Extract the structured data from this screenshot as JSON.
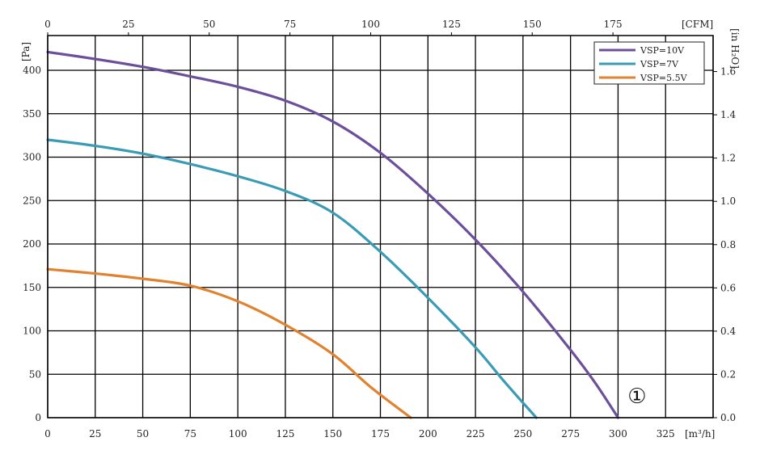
{
  "chart_data": {
    "type": "line",
    "bottom_axis": {
      "unit": "[m³/h]",
      "range": [
        0,
        350
      ],
      "ticks": [
        0,
        25,
        50,
        75,
        100,
        125,
        150,
        175,
        200,
        225,
        250,
        275,
        300,
        325
      ],
      "tick_labels": [
        "0",
        "25",
        "50",
        "75",
        "100",
        "125",
        "150",
        "175",
        "200",
        "225",
        "250",
        "275",
        "300",
        "325"
      ]
    },
    "top_axis": {
      "unit": "[CFM]",
      "ticks": [
        0,
        25,
        50,
        75,
        100,
        125,
        150,
        175
      ],
      "tick_labels": [
        "0",
        "25",
        "50",
        "75",
        "100",
        "125",
        "150",
        "175"
      ]
    },
    "left_axis": {
      "unit": "[Pa]",
      "range": [
        0,
        440
      ],
      "ticks": [
        0,
        50,
        100,
        150,
        200,
        250,
        300,
        350,
        400
      ],
      "tick_labels": [
        "0",
        "50",
        "100",
        "150",
        "200",
        "250",
        "300",
        "350",
        "400"
      ]
    },
    "right_axis": {
      "unit": "[in H₂O]",
      "ticks": [
        0,
        0.2,
        0.4,
        0.6,
        0.8,
        1.0,
        1.2,
        1.4,
        1.6
      ],
      "tick_labels": [
        "0.0",
        "0.2",
        "0.4",
        "0.6",
        "0.8",
        "1.0",
        "1.2",
        "1.4",
        "1.6"
      ]
    },
    "grid": true,
    "legend_position": "top-right",
    "series": [
      {
        "name": "VSP=10V",
        "color": "#6b4f9a",
        "points": [
          [
            0,
            421
          ],
          [
            25,
            413
          ],
          [
            50,
            404
          ],
          [
            75,
            393
          ],
          [
            100,
            381
          ],
          [
            125,
            365
          ],
          [
            150,
            341
          ],
          [
            175,
            305
          ],
          [
            200,
            258
          ],
          [
            225,
            205
          ],
          [
            250,
            145
          ],
          [
            275,
            78
          ],
          [
            288,
            40
          ],
          [
            300,
            0
          ]
        ]
      },
      {
        "name": "VSP=7V",
        "color": "#3a9bb5",
        "points": [
          [
            0,
            320
          ],
          [
            25,
            313
          ],
          [
            50,
            304
          ],
          [
            75,
            292
          ],
          [
            100,
            278
          ],
          [
            125,
            261
          ],
          [
            150,
            236
          ],
          [
            175,
            191
          ],
          [
            200,
            138
          ],
          [
            225,
            81
          ],
          [
            240,
            42
          ],
          [
            257,
            0
          ]
        ]
      },
      {
        "name": "VSP=5.5V",
        "color": "#e0822f",
        "points": [
          [
            0,
            171
          ],
          [
            25,
            166
          ],
          [
            50,
            160
          ],
          [
            75,
            152
          ],
          [
            100,
            134
          ],
          [
            125,
            107
          ],
          [
            150,
            73
          ],
          [
            170,
            35
          ],
          [
            191,
            0
          ]
        ]
      }
    ],
    "annotations": [
      {
        "text": "①",
        "x": 310,
        "y": 25
      }
    ]
  }
}
